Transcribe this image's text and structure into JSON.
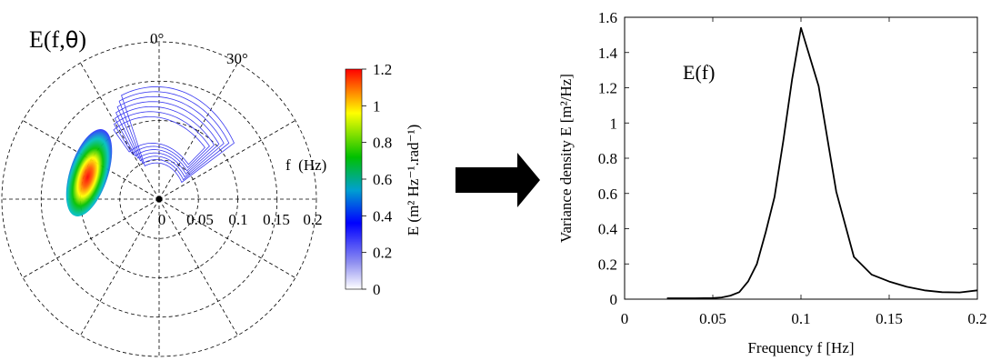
{
  "polar": {
    "title_main": "E(f,",
    "title_theta": "θ",
    "title_close": ")",
    "angle_labels": [
      "0°",
      "30°"
    ],
    "radial_axis_label": "f  (Hz)",
    "radial_ticks": [
      "0",
      "0.05",
      "0.1",
      "0.15",
      "0.2"
    ]
  },
  "colorbar": {
    "label": "E (m² Hz⁻¹.rad⁻¹)",
    "ticks": [
      "0",
      "0.2",
      "0.4",
      "0.6",
      "0.8",
      "1",
      "1.2"
    ],
    "min": 0,
    "max": 1.2
  },
  "chart_data": {
    "type": "line",
    "title": "E(f)",
    "xlabel": "Frequency f [Hz]",
    "ylabel": "Variance density E [m²/Hz]",
    "xlim": [
      0,
      0.2
    ],
    "ylim": [
      0,
      1.6
    ],
    "x_ticks": [
      "0",
      "0.05",
      "0.1",
      "0.15",
      "0.2"
    ],
    "y_ticks": [
      "0",
      "0.2",
      "0.4",
      "0.6",
      "0.8",
      "1",
      "1.2",
      "1.4",
      "1.6"
    ],
    "grid": false,
    "x": [
      0.024,
      0.03,
      0.04,
      0.05,
      0.055,
      0.06,
      0.065,
      0.07,
      0.075,
      0.08,
      0.085,
      0.09,
      0.095,
      0.1,
      0.11,
      0.12,
      0.13,
      0.14,
      0.15,
      0.16,
      0.17,
      0.18,
      0.19,
      0.2
    ],
    "y": [
      0.005,
      0.005,
      0.005,
      0.006,
      0.01,
      0.02,
      0.04,
      0.1,
      0.2,
      0.38,
      0.58,
      0.9,
      1.25,
      1.54,
      1.21,
      0.61,
      0.24,
      0.14,
      0.1,
      0.07,
      0.05,
      0.04,
      0.038,
      0.05
    ]
  }
}
